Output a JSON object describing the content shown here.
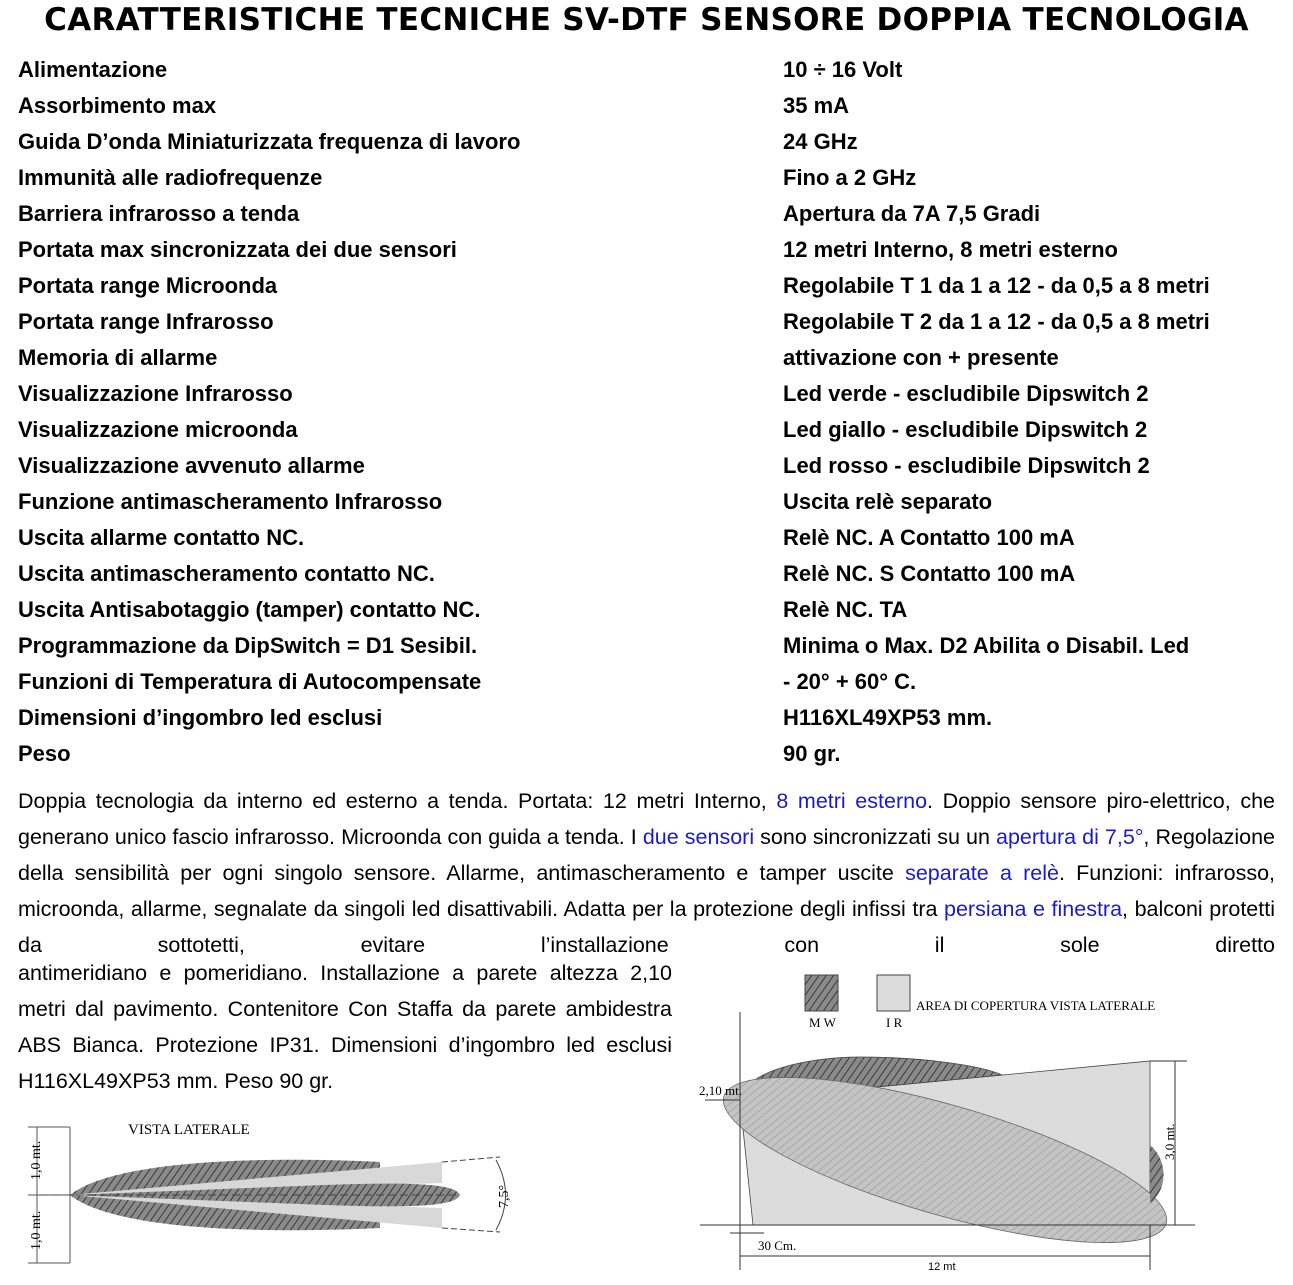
{
  "title": "CARATTERISTICHE TECNICHE SV-DTF SENSORE DOPPIA TECNOLOGIA",
  "specs": [
    {
      "label": "Alimentazione",
      "value": "10 ÷ 16 Volt"
    },
    {
      "label": "Assorbimento max",
      "value": "35 mA"
    },
    {
      "label": "Guida D’onda Miniaturizzata frequenza di lavoro",
      "value": "24 GHz"
    },
    {
      "label": "Immunità alle radiofrequenze",
      "value": "Fino a 2 GHz"
    },
    {
      "label": "Barriera infrarosso a tenda",
      "value": "Apertura da 7A 7,5 Gradi"
    },
    {
      "label": "Portata max sincronizzata dei due sensori",
      "value": "12 metri Interno, 8 metri esterno"
    },
    {
      "label": "Portata range Microonda",
      "value": "Regolabile T 1 da 1 a 12 - da 0,5 a 8 metri"
    },
    {
      "label": "Portata range Infrarosso",
      "value": "Regolabile T 2 da 1 a 12 - da 0,5 a 8 metri"
    },
    {
      "label": "Memoria di allarme",
      "value": "attivazione con + presente"
    },
    {
      "label": "Visualizzazione Infrarosso",
      "value": "Led verde - escludibile Dipswitch 2"
    },
    {
      "label": "Visualizzazione microonda",
      "value": "Led giallo - escludibile Dipswitch 2"
    },
    {
      "label": "Visualizzazione avvenuto allarme",
      "value": "Led rosso - escludibile Dipswitch 2"
    },
    {
      "label": "Funzione antimascheramento Infrarosso",
      "value": "Uscita relè separato"
    },
    {
      "label": "Uscita allarme contatto NC.",
      "value": "Relè NC. A Contatto 100 mA"
    },
    {
      "label": "Uscita antimascheramento contatto NC.",
      "value": "Relè NC. S Contatto 100 mA"
    },
    {
      "label": "Uscita Antisabotaggio (tamper) contatto NC.",
      "value": "Relè NC. TA"
    },
    {
      "label": "Programmazione da DipSwitch  =  D1 Sesibil.",
      "value": "Minima o Max. D2 Abilita o Disabil. Led"
    },
    {
      "label": "Funzioni di Temperatura di Autocompensate",
      "value": "- 20° +  60° C."
    },
    {
      "label": "Dimensioni d’ingombro led esclusi",
      "value": "H116XL49XP53 mm."
    },
    {
      "label": "Peso",
      "value": "90 gr."
    }
  ],
  "description": {
    "t1": "Doppia tecnologia da interno ed esterno a tenda. Portata: 12 metri Interno, ",
    "l1": "8 metri esterno",
    "t2": ". Doppio sensore piro-elettrico, che generano unico fascio infrarosso. Microonda con guida a tenda. I ",
    "l2": "due sensori",
    "t3": " sono sincronizzati su un ",
    "l3": "apertura di 7,5°",
    "t4": ", Regolazione della sensibilità per ogni singolo sensore. Allarme, antimascheramento e tamper uscite ",
    "l4": "separate a relè",
    "t5": ". Funzioni: infrarosso, microonda, allarme, segnalate da singoli led disattivabili. Adatta per la protezione degli infissi tra ",
    "l5": "persiana e finestra",
    "t6": ", balconi protetti da sottotetti, evitare l’installazione con il sole diretto",
    "t7": "antimeridiano e pomeridiano. Installazione a parete altezza 2,10 metri dal pavimento. Contenitore Con Staffa da parete ambidestra ABS Bianca. Protezione IP31. Dimensioni d’ingombro led esclusi H116XL49XP53 mm.  Peso 90 gr.",
    "link_color": "#1a1acc"
  },
  "side_view_diagram": {
    "title": "VISTA LATERALE",
    "dim_upper": "1,0 mt.",
    "dim_lower": "1,0 mt.",
    "angle": "7,5°"
  },
  "coverage_diagram": {
    "legend_mw": "M W",
    "legend_ir": "I R",
    "title": "AREA DI COPERTURA VISTA LATERALE",
    "height_label": "2,10 mt.",
    "dim_height": "3,0 mt.",
    "dim_offset": "30 Cm.",
    "dim_length": "12 mt"
  }
}
